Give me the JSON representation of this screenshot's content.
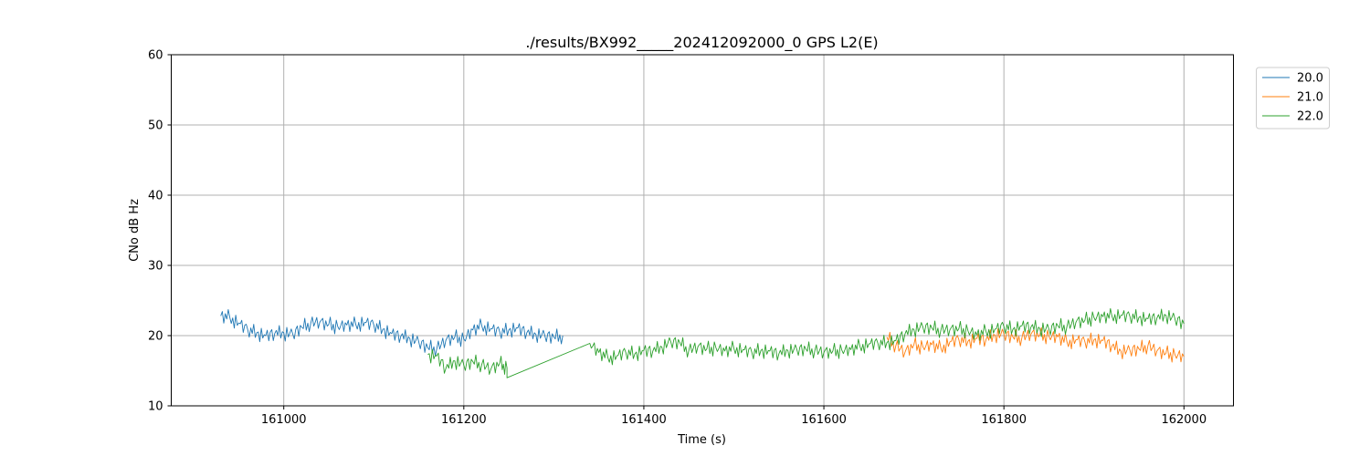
{
  "chart_data": {
    "type": "line",
    "title": "./results/BX992_____202412092000_0 GPS L2(E)",
    "xlabel": "Time (s)",
    "ylabel": "CNo dB Hz",
    "xlim": [
      160875,
      162055
    ],
    "ylim": [
      10,
      60
    ],
    "x_ticks": [
      161000,
      161200,
      161400,
      161600,
      161800,
      162000
    ],
    "x_tick_labels": [
      "161000",
      "161200",
      "161400",
      "161600",
      "161800",
      "162000"
    ],
    "y_ticks": [
      10,
      20,
      30,
      40,
      50,
      60
    ],
    "y_tick_labels": [
      "10",
      "20",
      "30",
      "40",
      "50",
      "60"
    ],
    "grid": true,
    "legend_position": "outside top-right",
    "series": [
      {
        "name": "20.0",
        "color": "#1f77b4",
        "points": [
          [
            160930,
            22.8
          ],
          [
            160940,
            22.6
          ],
          [
            160950,
            21.8
          ],
          [
            160960,
            20.8
          ],
          [
            160970,
            20.4
          ],
          [
            160980,
            20.0
          ],
          [
            160990,
            20.3
          ],
          [
            161000,
            20.4
          ],
          [
            161010,
            20.2
          ],
          [
            161020,
            21.2
          ],
          [
            161030,
            21.8
          ],
          [
            161040,
            21.9
          ],
          [
            161050,
            21.6
          ],
          [
            161060,
            21.3
          ],
          [
            161070,
            21.5
          ],
          [
            161080,
            21.6
          ],
          [
            161090,
            21.9
          ],
          [
            161100,
            21.5
          ],
          [
            161110,
            20.9
          ],
          [
            161120,
            20.3
          ],
          [
            161130,
            19.9
          ],
          [
            161140,
            19.6
          ],
          [
            161150,
            19.1
          ],
          [
            161160,
            18.3
          ],
          [
            161170,
            18.2
          ],
          [
            161180,
            19.3
          ],
          [
            161190,
            19.8
          ],
          [
            161200,
            19.5
          ],
          [
            161210,
            20.8
          ],
          [
            161220,
            21.4
          ],
          [
            161230,
            21.0
          ],
          [
            161240,
            20.5
          ],
          [
            161250,
            20.8
          ],
          [
            161260,
            21.1
          ],
          [
            161270,
            20.4
          ],
          [
            161280,
            20.2
          ],
          [
            161290,
            20.0
          ],
          [
            161300,
            19.8
          ],
          [
            161310,
            20.0
          ]
        ]
      },
      {
        "name": "21.0",
        "color": "#ff7f0e",
        "points": [
          [
            161670,
            19.8
          ],
          [
            161680,
            18.6
          ],
          [
            161690,
            17.6
          ],
          [
            161700,
            18.7
          ],
          [
            161710,
            18.4
          ],
          [
            161720,
            18.7
          ],
          [
            161730,
            18.2
          ],
          [
            161740,
            19.1
          ],
          [
            161750,
            19.4
          ],
          [
            161760,
            19.2
          ],
          [
            161770,
            19.6
          ],
          [
            161780,
            19.4
          ],
          [
            161790,
            20.1
          ],
          [
            161800,
            20.2
          ],
          [
            161810,
            19.8
          ],
          [
            161820,
            19.7
          ],
          [
            161830,
            20.2
          ],
          [
            161840,
            20.1
          ],
          [
            161850,
            19.9
          ],
          [
            161860,
            19.8
          ],
          [
            161870,
            19.1
          ],
          [
            161880,
            19.4
          ],
          [
            161890,
            19.1
          ],
          [
            161900,
            19.4
          ],
          [
            161910,
            19.3
          ],
          [
            161920,
            18.5
          ],
          [
            161930,
            17.8
          ],
          [
            161940,
            17.9
          ],
          [
            161950,
            18.1
          ],
          [
            161960,
            18.6
          ],
          [
            161970,
            17.8
          ],
          [
            161980,
            17.5
          ],
          [
            161990,
            17.3
          ],
          [
            162000,
            17.0
          ]
        ]
      },
      {
        "name": "22.0",
        "color": "#2ca02c",
        "points": [
          [
            161160,
            17.3
          ],
          [
            161170,
            17.1
          ],
          [
            161180,
            15.3
          ],
          [
            161190,
            16.4
          ],
          [
            161200,
            15.8
          ],
          [
            161210,
            16.3
          ],
          [
            161220,
            15.9
          ],
          [
            161230,
            15.2
          ],
          [
            161240,
            16.1
          ],
          [
            161248,
            15.4
          ],
          [
            161248,
            14.0
          ],
          [
            161340,
            18.9
          ],
          [
            161350,
            17.6
          ],
          [
            161360,
            16.9
          ],
          [
            161370,
            17.1
          ],
          [
            161380,
            17.6
          ],
          [
            161390,
            17.4
          ],
          [
            161400,
            17.9
          ],
          [
            161410,
            17.8
          ],
          [
            161420,
            18.4
          ],
          [
            161430,
            19.1
          ],
          [
            161440,
            19.0
          ],
          [
            161450,
            17.9
          ],
          [
            161460,
            18.4
          ],
          [
            161470,
            18.1
          ],
          [
            161480,
            18.3
          ],
          [
            161490,
            17.8
          ],
          [
            161500,
            18.2
          ],
          [
            161510,
            18.0
          ],
          [
            161520,
            17.6
          ],
          [
            161530,
            17.9
          ],
          [
            161540,
            17.8
          ],
          [
            161550,
            17.4
          ],
          [
            161560,
            17.9
          ],
          [
            161570,
            18.0
          ],
          [
            161580,
            18.1
          ],
          [
            161590,
            17.9
          ],
          [
            161600,
            17.6
          ],
          [
            161610,
            17.8
          ],
          [
            161620,
            17.9
          ],
          [
            161630,
            18.0
          ],
          [
            161640,
            18.5
          ],
          [
            161650,
            18.8
          ],
          [
            161660,
            18.9
          ],
          [
            161670,
            19.0
          ],
          [
            161680,
            19.3
          ],
          [
            161690,
            20.2
          ],
          [
            161700,
            20.9
          ],
          [
            161710,
            21.2
          ],
          [
            161720,
            21.1
          ],
          [
            161730,
            20.8
          ],
          [
            161740,
            20.8
          ],
          [
            161750,
            21.0
          ],
          [
            161760,
            20.7
          ],
          [
            161770,
            20.1
          ],
          [
            161780,
            20.6
          ],
          [
            161790,
            20.9
          ],
          [
            161800,
            21.3
          ],
          [
            161810,
            20.9
          ],
          [
            161820,
            21.4
          ],
          [
            161830,
            21.2
          ],
          [
            161840,
            21.0
          ],
          [
            161850,
            20.9
          ],
          [
            161860,
            21.4
          ],
          [
            161870,
            21.3
          ],
          [
            161880,
            21.9
          ],
          [
            161890,
            22.2
          ],
          [
            161900,
            22.6
          ],
          [
            161910,
            22.7
          ],
          [
            161920,
            22.8
          ],
          [
            161930,
            22.9
          ],
          [
            161940,
            22.7
          ],
          [
            161950,
            22.6
          ],
          [
            161960,
            22.4
          ],
          [
            161970,
            22.5
          ],
          [
            161980,
            22.9
          ],
          [
            161990,
            22.4
          ],
          [
            162000,
            21.7
          ]
        ]
      }
    ]
  }
}
